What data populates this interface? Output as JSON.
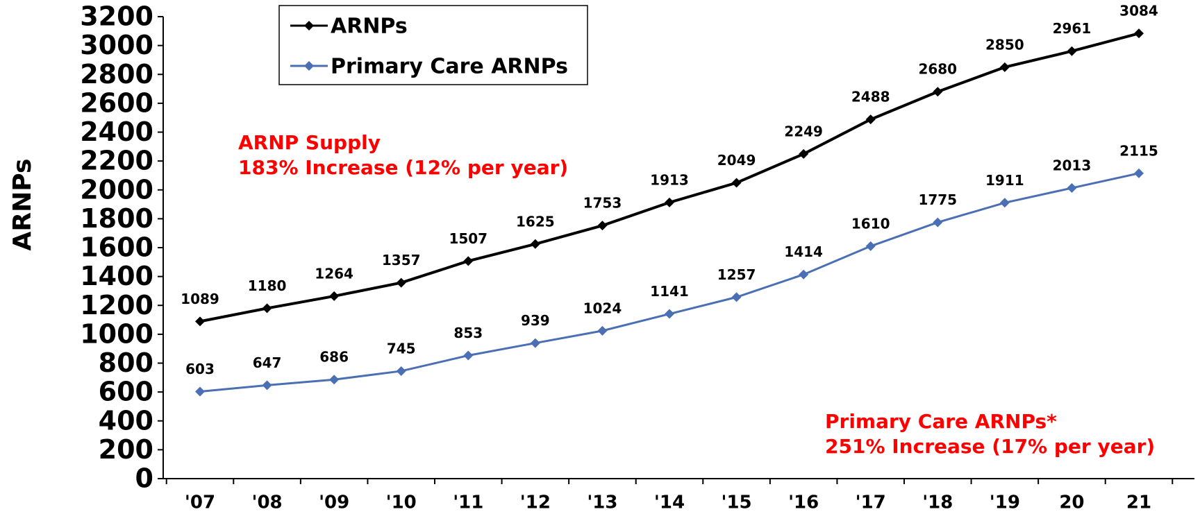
{
  "chart_data": {
    "type": "line",
    "y_label": "ARNPs",
    "categories": [
      "'07",
      "'08",
      "'09",
      "'10",
      "'11",
      "'12",
      "'13",
      "'14",
      "'15",
      "'16",
      "'17",
      "'18",
      "'19",
      "20",
      "21"
    ],
    "series": [
      {
        "name": "ARNPs",
        "color": "#000000",
        "values": [
          1089,
          1180,
          1264,
          1357,
          1507,
          1625,
          1753,
          1913,
          2049,
          2249,
          2488,
          2680,
          2850,
          2961,
          3084
        ]
      },
      {
        "name": "Primary Care ARNPs",
        "color": "#4a6fb5",
        "values": [
          603,
          647,
          686,
          745,
          853,
          939,
          1024,
          1141,
          1257,
          1414,
          1610,
          1775,
          1911,
          2013,
          2115
        ]
      }
    ],
    "ylim": [
      0,
      3200
    ],
    "yticks": [
      0,
      200,
      400,
      600,
      800,
      1000,
      1200,
      1400,
      1600,
      1800,
      2000,
      2200,
      2400,
      2600,
      2800,
      3000,
      3200
    ],
    "legend": "top-left",
    "annotations": [
      {
        "lines": [
          "ARNP Supply",
          "183% Increase (12% per year)"
        ],
        "color": "#ff0000"
      },
      {
        "lines": [
          "Primary Care ARNPs*",
          "251% Increase (17% per year)"
        ],
        "color": "#ff0000"
      }
    ]
  }
}
